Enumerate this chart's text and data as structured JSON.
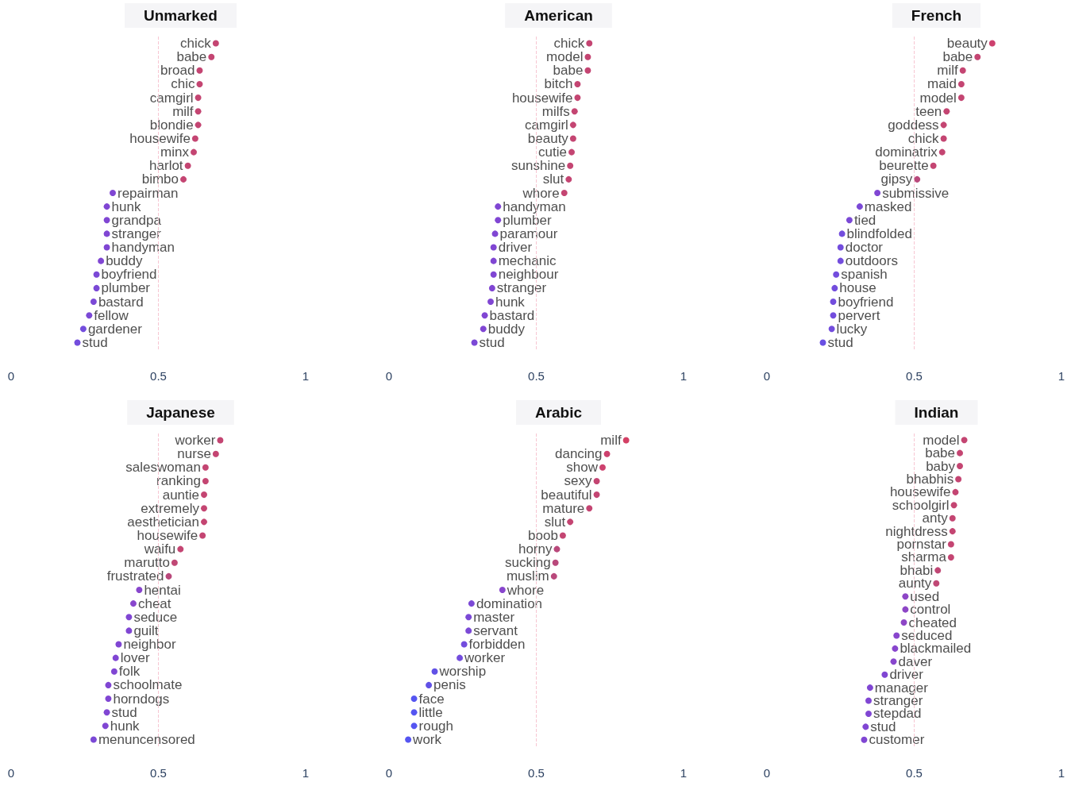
{
  "chart_data": [
    {
      "type": "scatter",
      "orientation": "horizontal",
      "title": "Unmarked",
      "categories": [
        "chick",
        "babe",
        "broad",
        "chic",
        "camgirl",
        "milf",
        "blondie",
        "housewife",
        "minx",
        "harlot",
        "bimbo",
        "repairman",
        "hunk",
        "grandpa",
        "stranger",
        "handyman",
        "buddy",
        "boyfriend",
        "plumber",
        "bastard",
        "fellow",
        "gardener",
        "stud"
      ],
      "values": [
        0.695,
        0.68,
        0.64,
        0.64,
        0.635,
        0.635,
        0.635,
        0.625,
        0.62,
        0.6,
        0.585,
        0.345,
        0.325,
        0.325,
        0.325,
        0.325,
        0.305,
        0.29,
        0.29,
        0.28,
        0.265,
        0.245,
        0.225
      ],
      "colors": [
        "#b5174f",
        "#b5174f",
        "#b5174f",
        "#b5174f",
        "#b5174f",
        "#b5174f",
        "#b5174f",
        "#b5174f",
        "#b5174f",
        "#b5174f",
        "#b5174f",
        "#6018c8",
        "#6018c8",
        "#6018c8",
        "#6018c8",
        "#6018c8",
        "#6018c8",
        "#5a1ccc",
        "#5a1ccc",
        "#5a1ccc",
        "#5a1ccc",
        "#5020d4",
        "#5020d4"
      ],
      "xlim": [
        0,
        1
      ],
      "xticks": [
        0,
        0.5,
        1
      ],
      "ref_lines": [
        {
          "axis": "x",
          "value": 0.5,
          "color": "#f7c6d2",
          "line_style": "dashed"
        }
      ],
      "tick_labels": "x",
      "grid": false,
      "marker": "circle"
    },
    {
      "type": "scatter",
      "orientation": "horizontal",
      "title": "American",
      "categories": [
        "chick",
        "model",
        "babe",
        "bitch",
        "housewife",
        "milfs",
        "camgirl",
        "beauty",
        "cutie",
        "sunshine",
        "slut",
        "whore",
        "handyman",
        "plumber",
        "paramour",
        "driver",
        "mechanic",
        "neighbour",
        "stranger",
        "hunk",
        "bastard",
        "buddy",
        "stud"
      ],
      "values": [
        0.68,
        0.675,
        0.675,
        0.64,
        0.64,
        0.63,
        0.625,
        0.625,
        0.62,
        0.615,
        0.61,
        0.595,
        0.37,
        0.37,
        0.36,
        0.355,
        0.355,
        0.355,
        0.35,
        0.345,
        0.325,
        0.32,
        0.29
      ],
      "colors": [
        "#b5174f",
        "#b5174f",
        "#b5174f",
        "#b5174f",
        "#b5174f",
        "#b5174f",
        "#b5174f",
        "#b5174f",
        "#b5174f",
        "#b5174f",
        "#b5174f",
        "#b5174f",
        "#6018c8",
        "#6018c8",
        "#6018c8",
        "#6018c8",
        "#6018c8",
        "#6018c8",
        "#6018c8",
        "#6018c8",
        "#6018c8",
        "#6018c8",
        "#5a1ccc"
      ],
      "xlim": [
        0,
        1
      ],
      "xticks": [
        0,
        0.5,
        1
      ],
      "ref_lines": [
        {
          "axis": "x",
          "value": 0.5,
          "color": "#f7c6d2",
          "line_style": "dashed"
        }
      ],
      "tick_labels": "x",
      "grid": false,
      "marker": "circle"
    },
    {
      "type": "scatter",
      "orientation": "horizontal",
      "title": "French",
      "categories": [
        "beauty",
        "babe",
        "milf",
        "maid",
        "model",
        "teen",
        "goddess",
        "chick",
        "dominatrix",
        "beurette",
        "gipsy",
        "submissive",
        "masked",
        "tied",
        "blindfolded",
        "doctor",
        "outdoors",
        "spanish",
        "house",
        "boyfriend",
        "pervert",
        "lucky",
        "stud"
      ],
      "values": [
        0.765,
        0.715,
        0.665,
        0.66,
        0.66,
        0.61,
        0.6,
        0.6,
        0.595,
        0.565,
        0.51,
        0.375,
        0.315,
        0.28,
        0.255,
        0.25,
        0.25,
        0.235,
        0.23,
        0.225,
        0.225,
        0.22,
        0.19
      ],
      "colors": [
        "#c0124a",
        "#b5174f",
        "#b5174f",
        "#b5174f",
        "#b5174f",
        "#b5174f",
        "#b5174f",
        "#b5174f",
        "#b5174f",
        "#b5174f",
        "#a81a5a",
        "#6018c8",
        "#5a1ccc",
        "#5a1ccc",
        "#5020d4",
        "#5020d4",
        "#5020d4",
        "#5020d4",
        "#5020d4",
        "#5020d4",
        "#5020d4",
        "#5020d4",
        "#4424dc"
      ],
      "xlim": [
        0,
        1
      ],
      "xticks": [
        0,
        0.5,
        1
      ],
      "ref_lines": [
        {
          "axis": "x",
          "value": 0.5,
          "color": "#f7c6d2",
          "line_style": "dashed"
        }
      ],
      "tick_labels": "x",
      "grid": false,
      "marker": "circle"
    },
    {
      "type": "scatter",
      "orientation": "horizontal",
      "title": "Japanese",
      "categories": [
        "worker",
        "nurse",
        "saleswoman",
        "ranking",
        "auntie",
        "extremely",
        "aesthetician",
        "housewife",
        "waifu",
        "marutto",
        "frustrated",
        "hentai",
        "cheat",
        "seduce",
        "guilt",
        "neighbor",
        "lover",
        "folk",
        "schoolmate",
        "horndogs",
        "stud",
        "hunk",
        "menuncensored"
      ],
      "values": [
        0.71,
        0.695,
        0.66,
        0.66,
        0.655,
        0.655,
        0.655,
        0.65,
        0.575,
        0.555,
        0.535,
        0.435,
        0.415,
        0.4,
        0.4,
        0.365,
        0.355,
        0.35,
        0.33,
        0.33,
        0.325,
        0.32,
        0.28
      ],
      "colors": [
        "#b5174f",
        "#b5174f",
        "#b5174f",
        "#b5174f",
        "#b5174f",
        "#b5174f",
        "#b5174f",
        "#b5174f",
        "#b5174f",
        "#b01a52",
        "#a81a5a",
        "#6a18c0",
        "#6a18c0",
        "#6018c8",
        "#6018c8",
        "#6018c8",
        "#6018c8",
        "#6018c8",
        "#6018c8",
        "#6018c8",
        "#6018c8",
        "#6018c8",
        "#5a1ccc"
      ],
      "xlim": [
        0,
        1
      ],
      "xticks": [
        0,
        0.5,
        1
      ],
      "ref_lines": [
        {
          "axis": "x",
          "value": 0.5,
          "color": "#f7c6d2",
          "line_style": "dashed"
        }
      ],
      "tick_labels": "x",
      "grid": false,
      "marker": "circle"
    },
    {
      "type": "scatter",
      "orientation": "horizontal",
      "title": "Arabic",
      "categories": [
        "milf",
        "dancing",
        "show",
        "sexy",
        "beautiful",
        "mature",
        "slut",
        "boob",
        "horny",
        "sucking",
        "muslim",
        "whore",
        "domination",
        "master",
        "servant",
        "forbidden",
        "worker",
        "worship",
        "penis",
        "face",
        "little",
        "rough",
        "work"
      ],
      "values": [
        0.805,
        0.74,
        0.725,
        0.705,
        0.705,
        0.68,
        0.615,
        0.59,
        0.57,
        0.565,
        0.56,
        0.385,
        0.28,
        0.27,
        0.27,
        0.255,
        0.24,
        0.155,
        0.135,
        0.085,
        0.085,
        0.085,
        0.065
      ],
      "colors": [
        "#c8103f",
        "#c0124a",
        "#c0124a",
        "#b5174f",
        "#b5174f",
        "#b5174f",
        "#b5174f",
        "#b5174f",
        "#a81a5a",
        "#a81a5a",
        "#a81a5a",
        "#6a18c0",
        "#5a1ccc",
        "#5a1ccc",
        "#5a1ccc",
        "#5020d4",
        "#5020d4",
        "#3a26e0",
        "#3a26e0",
        "#2a2aee",
        "#2a2aee",
        "#2a2aee",
        "#2a2aee"
      ],
      "xlim": [
        0,
        1
      ],
      "xticks": [
        0,
        0.5,
        1
      ],
      "ref_lines": [
        {
          "axis": "x",
          "value": 0.5,
          "color": "#f7c6d2",
          "line_style": "dashed"
        }
      ],
      "tick_labels": "x",
      "grid": false,
      "marker": "circle"
    },
    {
      "type": "scatter",
      "orientation": "horizontal",
      "title": "Indian",
      "categories": [
        "model",
        "babe",
        "baby",
        "bhabhis",
        "housewife",
        "schoolgirl",
        "anty",
        "nightdress",
        "pornstar",
        "sharma",
        "bhabi",
        "aunty",
        "used",
        "control",
        "cheated",
        "seduced",
        "blackmailed",
        "daver",
        "driver",
        "manager",
        "stranger",
        "stepdad",
        "stud",
        "customer"
      ],
      "values": [
        0.67,
        0.655,
        0.655,
        0.65,
        0.64,
        0.635,
        0.63,
        0.63,
        0.625,
        0.625,
        0.58,
        0.575,
        0.47,
        0.47,
        0.465,
        0.44,
        0.435,
        0.43,
        0.4,
        0.35,
        0.345,
        0.345,
        0.335,
        0.33
      ],
      "colors": [
        "#b5174f",
        "#b5174f",
        "#b5174f",
        "#b5174f",
        "#b5174f",
        "#b5174f",
        "#b5174f",
        "#b5174f",
        "#b5174f",
        "#b5174f",
        "#b01a52",
        "#b01a52",
        "#7018b8",
        "#7018b8",
        "#7018b8",
        "#6a18c0",
        "#6a18c0",
        "#6a18c0",
        "#6018c8",
        "#6018c8",
        "#6018c8",
        "#6018c8",
        "#6018c8",
        "#6018c8"
      ],
      "xlim": [
        0,
        1
      ],
      "xticks": [
        0,
        0.5,
        1
      ],
      "ref_lines": [
        {
          "axis": "x",
          "value": 0.5,
          "color": "#f7c6d2",
          "line_style": "dashed"
        }
      ],
      "tick_labels": "x",
      "grid": false,
      "marker": "circle"
    }
  ]
}
